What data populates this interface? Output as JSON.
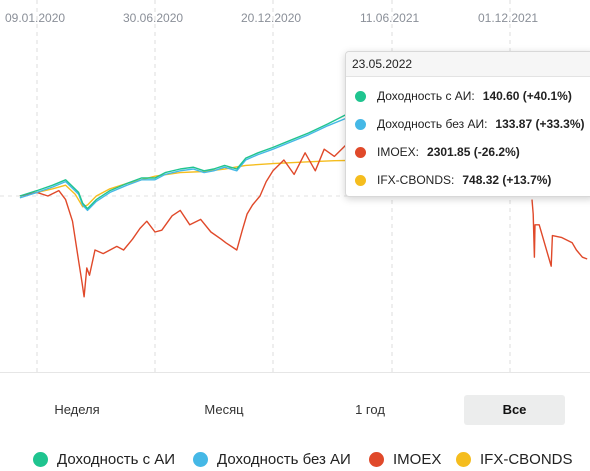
{
  "chart_data": {
    "type": "line",
    "x_tick_labels": [
      "09.01.2020",
      "30.06.2020",
      "20.12.2020",
      "11.06.2021",
      "01.12.2021"
    ],
    "grid": true,
    "legend_position": "bottom",
    "series": [
      {
        "name": "Доходность с АИ",
        "color": "#1fc48f",
        "points": [
          [
            "2019-12-15",
            100
          ],
          [
            "2020-01-09",
            101.5
          ],
          [
            "2020-02-01",
            103
          ],
          [
            "2020-02-20",
            104.5
          ],
          [
            "2020-03-10",
            101
          ],
          [
            "2020-03-16",
            98
          ],
          [
            "2020-03-23",
            96.5
          ],
          [
            "2020-04-05",
            99
          ],
          [
            "2020-04-25",
            101.5
          ],
          [
            "2020-05-20",
            103.5
          ],
          [
            "2020-06-10",
            105
          ],
          [
            "2020-06-30",
            105
          ],
          [
            "2020-07-15",
            106.5
          ],
          [
            "2020-08-06",
            107.5
          ],
          [
            "2020-08-25",
            108
          ],
          [
            "2020-09-10",
            107
          ],
          [
            "2020-09-24",
            107.5
          ],
          [
            "2020-10-10",
            108.5
          ],
          [
            "2020-10-28",
            107.5
          ],
          [
            "2020-11-10",
            110.5
          ],
          [
            "2020-11-28",
            112
          ],
          [
            "2020-12-20",
            113.5
          ],
          [
            "2021-01-15",
            115.5
          ],
          [
            "2021-02-10",
            117.5
          ],
          [
            "2021-03-10",
            120
          ],
          [
            "2021-04-05",
            122.5
          ],
          [
            "2021-04-25",
            124
          ],
          [
            "2021-05-10",
            125
          ],
          [
            "2021-05-23",
            126
          ]
        ]
      },
      {
        "name": "Доходность без АИ",
        "color": "#45b8e6",
        "points": [
          [
            "2019-12-15",
            99.5
          ],
          [
            "2020-01-09",
            101
          ],
          [
            "2020-02-01",
            102.5
          ],
          [
            "2020-02-20",
            104
          ],
          [
            "2020-03-10",
            100.5
          ],
          [
            "2020-03-16",
            97.5
          ],
          [
            "2020-03-23",
            96
          ],
          [
            "2020-04-05",
            98.5
          ],
          [
            "2020-04-25",
            101
          ],
          [
            "2020-05-20",
            103
          ],
          [
            "2020-06-10",
            104.5
          ],
          [
            "2020-06-30",
            104.5
          ],
          [
            "2020-07-15",
            106
          ],
          [
            "2020-08-06",
            107
          ],
          [
            "2020-08-25",
            107.5
          ],
          [
            "2020-09-10",
            106.5
          ],
          [
            "2020-09-24",
            107
          ],
          [
            "2020-10-10",
            108
          ],
          [
            "2020-10-28",
            107
          ],
          [
            "2020-11-10",
            110
          ],
          [
            "2020-11-28",
            111.5
          ],
          [
            "2020-12-20",
            113
          ],
          [
            "2021-01-15",
            115
          ],
          [
            "2021-02-10",
            117
          ],
          [
            "2021-03-10",
            119.5
          ],
          [
            "2021-04-05",
            121.5
          ],
          [
            "2021-04-25",
            123
          ],
          [
            "2021-05-10",
            124.5
          ],
          [
            "2021-05-23",
            125.5
          ]
        ]
      },
      {
        "name": "IMOEX",
        "color": "#e0492a",
        "points": [
          [
            "2019-12-15",
            100
          ],
          [
            "2020-01-09",
            101
          ],
          [
            "2020-01-25",
            100
          ],
          [
            "2020-02-10",
            101.5
          ],
          [
            "2020-02-20",
            99
          ],
          [
            "2020-03-01",
            93
          ],
          [
            "2020-03-10",
            82
          ],
          [
            "2020-03-15",
            76
          ],
          [
            "2020-03-18",
            72
          ],
          [
            "2020-03-22",
            80
          ],
          [
            "2020-03-26",
            78
          ],
          [
            "2020-04-03",
            85
          ],
          [
            "2020-04-15",
            84
          ],
          [
            "2020-04-25",
            85
          ],
          [
            "2020-05-05",
            86
          ],
          [
            "2020-05-15",
            85
          ],
          [
            "2020-05-28",
            88
          ],
          [
            "2020-06-08",
            91
          ],
          [
            "2020-06-18",
            93
          ],
          [
            "2020-06-30",
            90
          ],
          [
            "2020-07-10",
            90.5
          ],
          [
            "2020-07-25",
            94.5
          ],
          [
            "2020-08-06",
            96
          ],
          [
            "2020-08-20",
            92
          ],
          [
            "2020-09-05",
            93.5
          ],
          [
            "2020-09-20",
            90
          ],
          [
            "2020-10-05",
            88
          ],
          [
            "2020-10-12",
            87
          ],
          [
            "2020-10-28",
            85
          ],
          [
            "2020-11-05",
            90.5
          ],
          [
            "2020-11-12",
            95
          ],
          [
            "2020-11-20",
            97.5
          ],
          [
            "2020-12-01",
            100
          ],
          [
            "2020-12-10",
            104
          ],
          [
            "2020-12-20",
            107
          ],
          [
            "2021-01-05",
            110
          ],
          [
            "2021-01-20",
            106
          ],
          [
            "2021-02-05",
            112
          ],
          [
            "2021-02-20",
            107
          ],
          [
            "2021-03-05",
            113
          ],
          [
            "2021-03-20",
            111
          ],
          [
            "2021-04-05",
            114
          ],
          [
            "2021-04-20",
            113
          ],
          [
            "2021-05-05",
            116
          ],
          [
            "2021-05-23",
            118.5
          ]
        ]
      },
      {
        "name": "IFX-CBONDS",
        "color": "#f5bd1e",
        "points": [
          [
            "2019-12-15",
            100
          ],
          [
            "2020-01-09",
            101
          ],
          [
            "2020-02-01",
            102
          ],
          [
            "2020-02-20",
            103
          ],
          [
            "2020-03-05",
            100.5
          ],
          [
            "2020-03-16",
            97
          ],
          [
            "2020-03-23",
            97.5
          ],
          [
            "2020-04-05",
            100
          ],
          [
            "2020-04-25",
            102
          ],
          [
            "2020-05-20",
            103.5
          ],
          [
            "2020-06-10",
            104.5
          ],
          [
            "2020-06-30",
            105.5
          ],
          [
            "2020-08-06",
            106.5
          ],
          [
            "2020-09-10",
            106.8
          ],
          [
            "2020-10-10",
            107.5
          ],
          [
            "2020-11-10",
            108.5
          ],
          [
            "2020-12-20",
            109
          ],
          [
            "2021-02-10",
            109.5
          ],
          [
            "2021-03-20",
            109.8
          ],
          [
            "2021-05-23",
            110
          ]
        ]
      }
    ],
    "late_imoex_points": [
      [
        "2022-02-20",
        99
      ],
      [
        "2022-02-22",
        95
      ],
      [
        "2022-02-24",
        83
      ],
      [
        "2022-02-25",
        92
      ],
      [
        "2022-03-04",
        92
      ],
      [
        "2022-03-24",
        80.5
      ],
      [
        "2022-03-26",
        89
      ],
      [
        "2022-04-10",
        88.5
      ],
      [
        "2022-04-28",
        87
      ],
      [
        "2022-05-05",
        85
      ],
      [
        "2022-05-15",
        83
      ],
      [
        "2022-05-23",
        82.5
      ]
    ]
  },
  "tooltip": {
    "date": "23.05.2022",
    "rows": [
      {
        "label": "Доходность с АИ:",
        "value": "140.60 (+40.1%)",
        "color": "#1fc48f"
      },
      {
        "label": "Доходность без АИ:",
        "value": "133.87 (+33.3%)",
        "color": "#45b8e6"
      },
      {
        "label": "IMOEX:",
        "value": "2301.85 (-26.2%)",
        "color": "#e0492a"
      },
      {
        "label": "IFX-CBONDS:",
        "value": "748.32 (+13.7%)",
        "color": "#f5bd1e"
      }
    ]
  },
  "periods": {
    "week": "Неделя",
    "month": "Месяц",
    "year": "1 год",
    "all": "Все",
    "active": "Все"
  },
  "legend": [
    {
      "label": "Доходность с АИ",
      "color": "#1fc48f"
    },
    {
      "label": "Доходность без АИ",
      "color": "#45b8e6"
    },
    {
      "label": "IMOEX",
      "color": "#e0492a"
    },
    {
      "label": "IFX-CBONDS",
      "color": "#f5bd1e"
    }
  ]
}
